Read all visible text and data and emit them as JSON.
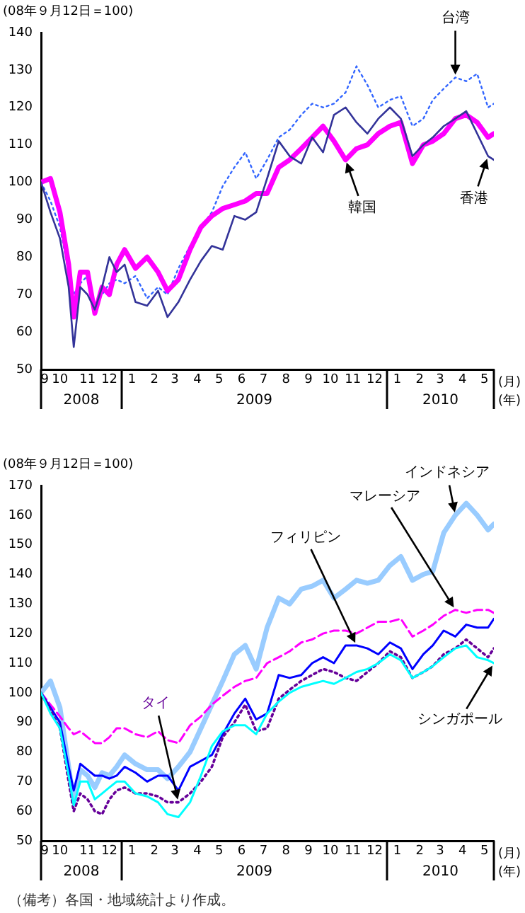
{
  "chart_data": [
    {
      "type": "line",
      "ylabel": "(08年９月12日＝100)",
      "legend": false,
      "grid": false,
      "marker": "none",
      "xlim": [
        "2008-09-12",
        "2010-05-28"
      ],
      "ylim": [
        50,
        140
      ],
      "yticks": [
        50,
        60,
        70,
        80,
        90,
        100,
        110,
        120,
        130,
        140
      ],
      "xticks": [
        {
          "value": "2008-09-17",
          "label": "9"
        },
        {
          "value": "2008-10-08",
          "label": "10"
        },
        {
          "value": "2008-11-15",
          "label": "11"
        },
        {
          "value": "2008-12-15",
          "label": "12"
        },
        {
          "value": "2009-01-15",
          "label": "1"
        },
        {
          "value": "2009-02-15",
          "label": "2"
        },
        {
          "value": "2009-03-15",
          "label": "3"
        },
        {
          "value": "2009-04-15",
          "label": "4"
        },
        {
          "value": "2009-05-15",
          "label": "5"
        },
        {
          "value": "2009-06-15",
          "label": "6"
        },
        {
          "value": "2009-07-15",
          "label": "7"
        },
        {
          "value": "2009-08-15",
          "label": "8"
        },
        {
          "value": "2009-09-15",
          "label": "9"
        },
        {
          "value": "2009-10-15",
          "label": "10"
        },
        {
          "value": "2009-11-15",
          "label": "11"
        },
        {
          "value": "2009-12-15",
          "label": "12"
        },
        {
          "value": "2010-01-15",
          "label": "1"
        },
        {
          "value": "2010-02-15",
          "label": "2"
        },
        {
          "value": "2010-03-15",
          "label": "3"
        },
        {
          "value": "2010-04-15",
          "label": "4"
        },
        {
          "value": "2010-05-15",
          "label": "5"
        }
      ],
      "annotations": [
        "2008",
        "2009",
        "2010",
        "(月)",
        "(年)"
      ],
      "x": [
        "2008-09-12",
        "2008-09-25",
        "2008-10-08",
        "2008-10-20",
        "2008-10-27",
        "2008-11-05",
        "2008-11-15",
        "2008-11-25",
        "2008-12-05",
        "2008-12-15",
        "2008-12-25",
        "2009-01-05",
        "2009-01-20",
        "2009-02-05",
        "2009-02-20",
        "2009-03-05",
        "2009-03-20",
        "2009-04-05",
        "2009-04-20",
        "2009-05-05",
        "2009-05-20",
        "2009-06-05",
        "2009-06-20",
        "2009-07-05",
        "2009-07-20",
        "2009-08-05",
        "2009-08-20",
        "2009-09-05",
        "2009-09-20",
        "2009-10-05",
        "2009-10-20",
        "2009-11-05",
        "2009-11-20",
        "2009-12-05",
        "2009-12-20",
        "2010-01-05",
        "2010-01-20",
        "2010-02-05",
        "2010-02-20",
        "2010-03-05",
        "2010-03-20",
        "2010-04-05",
        "2010-04-20",
        "2010-05-05",
        "2010-05-20",
        "2010-05-28"
      ],
      "series": [
        {
          "name": "台湾",
          "color": "#3366ff",
          "line_style": "dotted",
          "values": [
            100,
            95,
            88,
            76,
            70,
            73,
            75,
            67,
            70,
            73,
            74,
            73,
            75,
            69,
            72,
            70,
            77,
            83,
            88,
            92,
            99,
            104,
            108,
            101,
            106,
            112,
            114,
            118,
            121,
            120,
            121,
            124,
            131,
            126,
            120,
            122,
            123,
            115,
            117,
            122,
            125,
            128,
            127,
            129,
            120,
            121
          ]
        },
        {
          "name": "韓国",
          "color": "#ff00ff",
          "line_style": "solid",
          "values": [
            100,
            101,
            92,
            78,
            64,
            76,
            76,
            65,
            72,
            70,
            78,
            82,
            77,
            80,
            76,
            71,
            74,
            82,
            88,
            91,
            93,
            94,
            95,
            97,
            97,
            104,
            106,
            109,
            112,
            115,
            111,
            106,
            109,
            110,
            113,
            115,
            116,
            105,
            110,
            111,
            113,
            117,
            118,
            116,
            112,
            113
          ]
        },
        {
          "name": "香港",
          "color": "#333399",
          "line_style": "solid",
          "values": [
            100,
            92,
            85,
            72,
            56,
            72,
            70,
            66,
            72,
            80,
            76,
            78,
            68,
            67,
            71,
            64,
            68,
            74,
            79,
            83,
            82,
            91,
            90,
            92,
            101,
            111,
            107,
            105,
            112,
            108,
            118,
            120,
            116,
            113,
            117,
            120,
            117,
            107,
            110,
            112,
            115,
            117,
            119,
            113,
            107,
            106
          ]
        }
      ]
    },
    {
      "type": "line",
      "ylabel": "(08年９月12日＝100)",
      "legend": false,
      "grid": false,
      "marker": "none",
      "xlim": [
        "2008-09-12",
        "2010-05-28"
      ],
      "ylim": [
        50,
        170
      ],
      "yticks": [
        50,
        60,
        70,
        80,
        90,
        100,
        110,
        120,
        130,
        140,
        150,
        160,
        170
      ],
      "xticks": [
        {
          "value": "2008-09-17",
          "label": "9"
        },
        {
          "value": "2008-10-08",
          "label": "10"
        },
        {
          "value": "2008-11-15",
          "label": "11"
        },
        {
          "value": "2008-12-15",
          "label": "12"
        },
        {
          "value": "2009-01-15",
          "label": "1"
        },
        {
          "value": "2009-02-15",
          "label": "2"
        },
        {
          "value": "2009-03-15",
          "label": "3"
        },
        {
          "value": "2009-04-15",
          "label": "4"
        },
        {
          "value": "2009-05-15",
          "label": "5"
        },
        {
          "value": "2009-06-15",
          "label": "6"
        },
        {
          "value": "2009-07-15",
          "label": "7"
        },
        {
          "value": "2009-08-15",
          "label": "8"
        },
        {
          "value": "2009-09-15",
          "label": "9"
        },
        {
          "value": "2009-10-15",
          "label": "10"
        },
        {
          "value": "2009-11-15",
          "label": "11"
        },
        {
          "value": "2009-12-15",
          "label": "12"
        },
        {
          "value": "2010-01-15",
          "label": "1"
        },
        {
          "value": "2010-02-15",
          "label": "2"
        },
        {
          "value": "2010-03-15",
          "label": "3"
        },
        {
          "value": "2010-04-15",
          "label": "4"
        },
        {
          "value": "2010-05-15",
          "label": "5"
        }
      ],
      "annotations": [
        "2008",
        "2009",
        "2010",
        "(月)",
        "(年)",
        "（備考）各国・地域統計より作成。"
      ],
      "x": [
        "2008-09-12",
        "2008-09-25",
        "2008-10-08",
        "2008-10-20",
        "2008-10-27",
        "2008-11-05",
        "2008-11-15",
        "2008-11-25",
        "2008-12-05",
        "2008-12-15",
        "2008-12-25",
        "2009-01-05",
        "2009-01-20",
        "2009-02-05",
        "2009-02-20",
        "2009-03-05",
        "2009-03-20",
        "2009-04-05",
        "2009-04-20",
        "2009-05-05",
        "2009-05-20",
        "2009-06-05",
        "2009-06-20",
        "2009-07-05",
        "2009-07-20",
        "2009-08-05",
        "2009-08-20",
        "2009-09-05",
        "2009-09-20",
        "2009-10-05",
        "2009-10-20",
        "2009-11-05",
        "2009-11-20",
        "2009-12-05",
        "2009-12-20",
        "2010-01-05",
        "2010-01-20",
        "2010-02-05",
        "2010-02-20",
        "2010-03-05",
        "2010-03-20",
        "2010-04-05",
        "2010-04-20",
        "2010-05-05",
        "2010-05-20",
        "2010-05-28"
      ],
      "series": [
        {
          "name": "インドネシア",
          "color": "#99ccff",
          "line_style": "solid",
          "values": [
            100,
            104,
            95,
            75,
            63,
            74,
            72,
            68,
            73,
            72,
            75,
            79,
            76,
            74,
            74,
            71,
            75,
            80,
            88,
            96,
            104,
            113,
            116,
            108,
            122,
            132,
            130,
            135,
            136,
            138,
            132,
            135,
            138,
            137,
            138,
            143,
            146,
            138,
            140,
            141,
            154,
            160,
            164,
            160,
            155,
            157
          ]
        },
        {
          "name": "マレーシア",
          "color": "#ff00ff",
          "line_style": "dashed",
          "values": [
            100,
            96,
            92,
            88,
            86,
            87,
            85,
            83,
            83,
            85,
            88,
            88,
            86,
            85,
            87,
            84,
            83,
            89,
            92,
            96,
            99,
            102,
            104,
            105,
            110,
            112,
            114,
            117,
            118,
            120,
            121,
            121,
            120,
            122,
            124,
            124,
            125,
            119,
            121,
            123,
            126,
            128,
            127,
            128,
            128,
            127
          ]
        },
        {
          "name": "フィリピン",
          "color": "#0000ff",
          "line_style": "solid",
          "values": [
            100,
            95,
            90,
            75,
            67,
            76,
            74,
            72,
            72,
            71,
            72,
            75,
            73,
            70,
            72,
            72,
            67,
            75,
            77,
            79,
            86,
            93,
            98,
            91,
            93,
            106,
            105,
            106,
            110,
            112,
            110,
            116,
            116,
            115,
            113,
            117,
            115,
            108,
            113,
            116,
            121,
            119,
            123,
            122,
            122,
            125
          ]
        },
        {
          "name": "タイ",
          "color": "#660099",
          "line_style": "dotted",
          "values": [
            100,
            94,
            88,
            70,
            60,
            66,
            64,
            60,
            59,
            64,
            67,
            68,
            66,
            66,
            65,
            63,
            63,
            66,
            70,
            75,
            85,
            90,
            96,
            87,
            88,
            98,
            101,
            104,
            106,
            108,
            107,
            105,
            104,
            107,
            110,
            114,
            112,
            105,
            107,
            109,
            113,
            115,
            118,
            115,
            112,
            115
          ]
        },
        {
          "name": "シンガポール",
          "color": "#00ffff",
          "line_style": "solid",
          "values": [
            100,
            93,
            88,
            72,
            62,
            70,
            70,
            64,
            66,
            68,
            70,
            70,
            66,
            65,
            63,
            59,
            58,
            63,
            72,
            82,
            87,
            89,
            89,
            86,
            93,
            97,
            100,
            102,
            103,
            104,
            103,
            105,
            107,
            108,
            110,
            113,
            111,
            105,
            107,
            109,
            112,
            115,
            116,
            112,
            111,
            110
          ]
        }
      ]
    }
  ]
}
